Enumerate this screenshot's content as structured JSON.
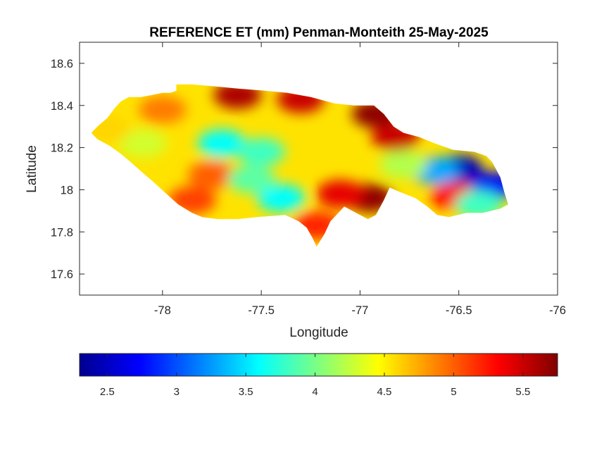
{
  "figure": {
    "title": "REFERENCE ET (mm) Penman-Monteith 25-May-2025",
    "xlabel": "Longitude",
    "ylabel": "Latitude"
  },
  "map": {
    "xlim": [
      -78.42,
      -76
    ],
    "ylim": [
      17.5,
      18.7
    ],
    "x_ticks": [
      {
        "value": -78,
        "label": "-78"
      },
      {
        "value": -77.5,
        "label": "-77.5"
      },
      {
        "value": -77,
        "label": "-77"
      },
      {
        "value": -76.5,
        "label": "-76.5"
      },
      {
        "value": -76,
        "label": "-76"
      }
    ],
    "y_ticks": [
      {
        "value": 17.6,
        "label": "17.6"
      },
      {
        "value": 17.8,
        "label": "17.8"
      },
      {
        "value": 18,
        "label": "18"
      },
      {
        "value": 18.2,
        "label": "18.2"
      },
      {
        "value": 18.4,
        "label": "18.4"
      },
      {
        "value": 18.6,
        "label": "18.6"
      }
    ],
    "region_outline": [
      [
        -78.36,
        18.27
      ],
      [
        -78.33,
        18.3
      ],
      [
        -78.28,
        18.34
      ],
      [
        -78.24,
        18.39
      ],
      [
        -78.21,
        18.42
      ],
      [
        -78.17,
        18.44
      ],
      [
        -78.11,
        18.44
      ],
      [
        -78.05,
        18.45
      ],
      [
        -78.0,
        18.46
      ],
      [
        -77.96,
        18.46
      ],
      [
        -77.93,
        18.47
      ],
      [
        -77.93,
        18.5
      ],
      [
        -77.85,
        18.5
      ],
      [
        -77.73,
        18.49
      ],
      [
        -77.62,
        18.48
      ],
      [
        -77.48,
        18.47
      ],
      [
        -77.37,
        18.46
      ],
      [
        -77.25,
        18.44
      ],
      [
        -77.13,
        18.41
      ],
      [
        -77.03,
        18.4
      ],
      [
        -76.93,
        18.4
      ],
      [
        -76.88,
        18.36
      ],
      [
        -76.83,
        18.3
      ],
      [
        -76.78,
        18.27
      ],
      [
        -76.7,
        18.25
      ],
      [
        -76.62,
        18.22
      ],
      [
        -76.53,
        18.19
      ],
      [
        -76.42,
        18.18
      ],
      [
        -76.36,
        18.16
      ],
      [
        -76.33,
        18.13
      ],
      [
        -76.29,
        18.06
      ],
      [
        -76.27,
        17.99
      ],
      [
        -76.25,
        17.93
      ],
      [
        -76.29,
        17.91
      ],
      [
        -76.38,
        17.89
      ],
      [
        -76.46,
        17.89
      ],
      [
        -76.55,
        17.87
      ],
      [
        -76.61,
        17.88
      ],
      [
        -76.66,
        17.92
      ],
      [
        -76.72,
        17.96
      ],
      [
        -76.8,
        17.99
      ],
      [
        -76.85,
        18.01
      ],
      [
        -76.88,
        17.95
      ],
      [
        -76.92,
        17.88
      ],
      [
        -76.96,
        17.86
      ],
      [
        -77.0,
        17.88
      ],
      [
        -77.04,
        17.9
      ],
      [
        -77.08,
        17.92
      ],
      [
        -77.12,
        17.88
      ],
      [
        -77.15,
        17.85
      ],
      [
        -77.18,
        17.79
      ],
      [
        -77.2,
        17.76
      ],
      [
        -77.22,
        17.73
      ],
      [
        -77.24,
        17.77
      ],
      [
        -77.27,
        17.82
      ],
      [
        -77.31,
        17.85
      ],
      [
        -77.38,
        17.88
      ],
      [
        -77.52,
        17.87
      ],
      [
        -77.62,
        17.86
      ],
      [
        -77.72,
        17.86
      ],
      [
        -77.8,
        17.87
      ],
      [
        -77.85,
        17.89
      ],
      [
        -77.92,
        17.93
      ],
      [
        -77.98,
        17.98
      ],
      [
        -78.05,
        18.04
      ],
      [
        -78.1,
        18.08
      ],
      [
        -78.16,
        18.13
      ],
      [
        -78.21,
        18.17
      ],
      [
        -78.27,
        18.21
      ],
      [
        -78.33,
        18.24
      ]
    ],
    "hotspots": [
      {
        "lon": -77.62,
        "lat": 18.45,
        "value": 5.6
      },
      {
        "lon": -77.3,
        "lat": 18.43,
        "value": 5.5
      },
      {
        "lon": -76.92,
        "lat": 18.36,
        "value": 5.7
      },
      {
        "lon": -76.82,
        "lat": 18.25,
        "value": 5.5
      },
      {
        "lon": -76.95,
        "lat": 17.96,
        "value": 5.7
      },
      {
        "lon": -77.1,
        "lat": 17.98,
        "value": 5.4
      },
      {
        "lon": -77.22,
        "lat": 17.83,
        "value": 5.2
      },
      {
        "lon": -76.52,
        "lat": 17.97,
        "value": 5.3
      },
      {
        "lon": -77.85,
        "lat": 17.95,
        "value": 5.1
      },
      {
        "lon": -77.75,
        "lat": 18.07,
        "value": 5.0
      },
      {
        "lon": -78.0,
        "lat": 18.38,
        "value": 4.9
      },
      {
        "lon": -77.7,
        "lat": 18.22,
        "value": 3.6
      },
      {
        "lon": -77.5,
        "lat": 18.18,
        "value": 3.8
      },
      {
        "lon": -77.4,
        "lat": 17.96,
        "value": 3.6
      },
      {
        "lon": -77.55,
        "lat": 18.05,
        "value": 3.9
      },
      {
        "lon": -78.1,
        "lat": 18.22,
        "value": 4.3
      },
      {
        "lon": -78.28,
        "lat": 18.29,
        "value": 4.6
      },
      {
        "lon": -76.5,
        "lat": 18.1,
        "value": 2.5
      },
      {
        "lon": -76.32,
        "lat": 18.02,
        "value": 2.7
      },
      {
        "lon": -76.62,
        "lat": 18.09,
        "value": 3.3
      },
      {
        "lon": -76.4,
        "lat": 17.93,
        "value": 3.8
      },
      {
        "lon": -76.78,
        "lat": 18.12,
        "value": 4.2
      }
    ]
  },
  "colorbar": {
    "colormap": "jet",
    "min": 2.3,
    "max": 5.75,
    "ticks": [
      {
        "value": 2.5,
        "label": "2.5"
      },
      {
        "value": 3,
        "label": "3"
      },
      {
        "value": 3.5,
        "label": "3.5"
      },
      {
        "value": 4,
        "label": "4"
      },
      {
        "value": 4.5,
        "label": "4.5"
      },
      {
        "value": 5,
        "label": "5"
      },
      {
        "value": 5.5,
        "label": "5.5"
      }
    ]
  }
}
